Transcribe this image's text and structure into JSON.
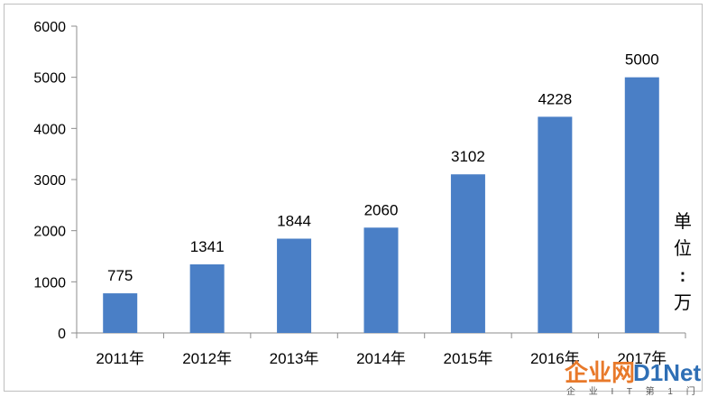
{
  "chart_data": {
    "type": "bar",
    "categories": [
      "2011年",
      "2012年",
      "2013年",
      "2014年",
      "2015年",
      "2016年",
      "2017年"
    ],
    "values": [
      775,
      1341,
      1844,
      2060,
      3102,
      4228,
      5000
    ],
    "title": "",
    "xlabel": "",
    "ylabel": "",
    "ylim": [
      0,
      6000
    ],
    "yticks": [
      0,
      1000,
      2000,
      3000,
      4000,
      5000,
      6000
    ],
    "unit_label": "单位：万",
    "grid": false,
    "legend": "none",
    "bar_color": "#4a7fc6"
  },
  "watermark": {
    "main_left": "企业网",
    "main_right": "D1Net",
    "sub": "企 业 I T 第 1 门 户",
    "color_left": "#e8792a",
    "color_right": "#2f6fb5"
  }
}
